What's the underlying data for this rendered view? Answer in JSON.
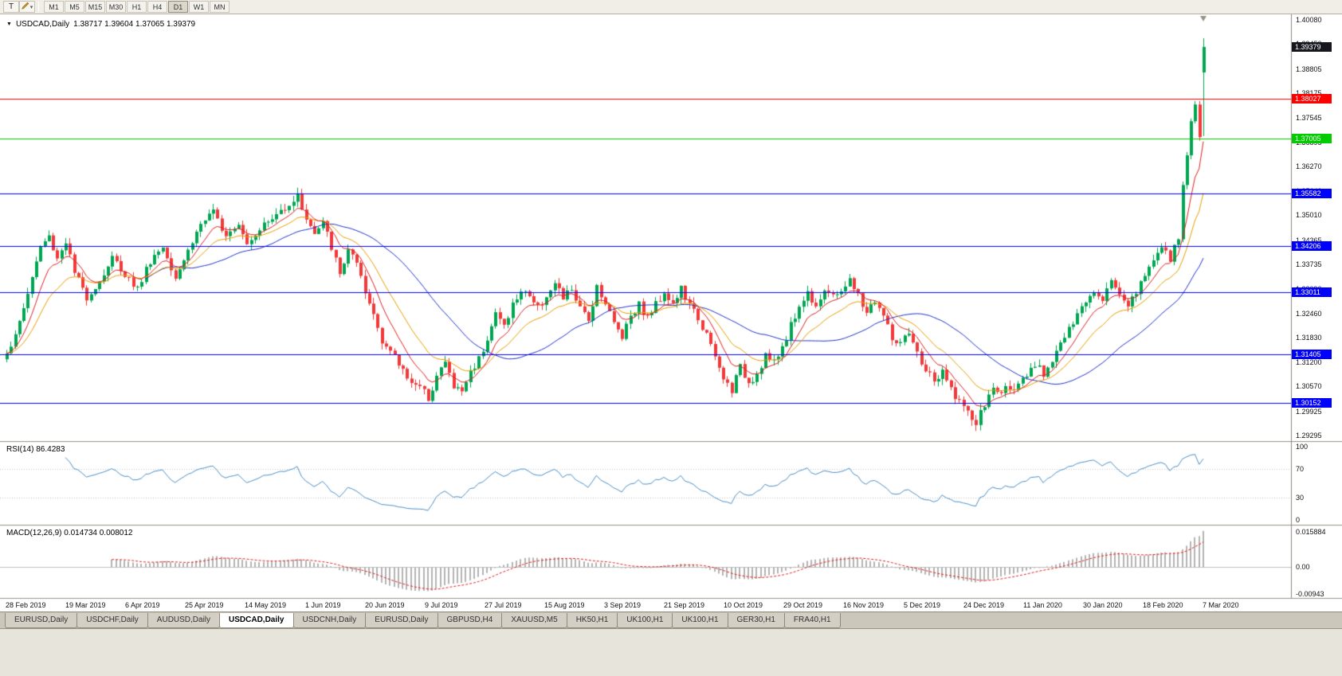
{
  "toolbar": {
    "tools": [
      {
        "name": "text-tool",
        "label": "T"
      },
      {
        "name": "style-tool",
        "icon": "pencil-icon"
      }
    ],
    "dropdown_glyph": "▾",
    "timeframes": [
      "M1",
      "M5",
      "M15",
      "M30",
      "H1",
      "H4",
      "D1",
      "W1",
      "MN"
    ],
    "active_timeframe": "D1"
  },
  "chart": {
    "title": {
      "collapse_glyph": "▼",
      "symbol": "USDCAD,Daily",
      "ohlc": "1.38717 1.39604 1.37065 1.39379"
    },
    "rsi_label": "RSI(14) 86.4283",
    "macd_label": "MACD(12,26,9) 0.014734 0.008012",
    "price_scale": [
      "1.40080",
      "1.39450",
      "1.38805",
      "1.38175",
      "1.37545",
      "1.36895",
      "1.36270",
      "1.35640",
      "1.35010",
      "1.34365",
      "1.33735",
      "1.33090",
      "1.32460",
      "1.31830",
      "1.31200",
      "1.30570",
      "1.29925",
      "1.29295"
    ],
    "rsi_scale": [
      "100",
      "70",
      "30",
      "0"
    ],
    "macd_scale": [
      "0.015884",
      "0.00",
      "-0.00943"
    ],
    "price_labels": [
      {
        "text": "1.39379",
        "price": 1.39379,
        "color": "#16161f",
        "type": "current-price"
      },
      {
        "text": "1.38027",
        "price": 1.38027,
        "color": "#ff0000",
        "type": "hline"
      },
      {
        "text": "1.37005",
        "price": 1.37005,
        "color": "#00cc00",
        "type": "hline"
      },
      {
        "text": "1.35582",
        "price": 1.35582,
        "color": "#0000ff",
        "type": "hline"
      },
      {
        "text": "1.34206",
        "price": 1.34206,
        "color": "#0000ff",
        "type": "hline"
      },
      {
        "text": "1.33011",
        "price": 1.33011,
        "color": "#0000ff",
        "type": "hline"
      },
      {
        "text": "1.31405",
        "price": 1.31405,
        "color": "#0000ff",
        "type": "hline"
      },
      {
        "text": "1.30152",
        "price": 1.30152,
        "color": "#0000ff",
        "type": "hline"
      }
    ],
    "time_scale": [
      "28 Feb 2019",
      "19 Mar 2019",
      "6 Apr 2019",
      "25 Apr 2019",
      "14 May 2019",
      "1 Jun 2019",
      "20 Jun 2019",
      "9 Jul 2019",
      "27 Jul 2019",
      "15 Aug 2019",
      "3 Sep 2019",
      "21 Sep 2019",
      "10 Oct 2019",
      "29 Oct 2019",
      "16 Nov 2019",
      "5 Dec 2019",
      "24 Dec 2019",
      "11 Jan 2020",
      "30 Jan 2020",
      "18 Feb 2020",
      "7 Mar 2020"
    ]
  },
  "chart_data": {
    "type": "candlestick",
    "symbol": "USDCAD",
    "timeframe": "Daily",
    "y_range": [
      1.29295,
      1.4008
    ],
    "bars_total": 285,
    "x_labels": [
      "28 Feb 2019",
      "19 Mar 2019",
      "6 Apr 2019",
      "25 Apr 2019",
      "14 May 2019",
      "1 Jun 2019",
      "20 Jun 2019",
      "9 Jul 2019",
      "27 Jul 2019",
      "15 Aug 2019",
      "3 Sep 2019",
      "21 Sep 2019",
      "10 Oct 2019",
      "29 Oct 2019",
      "16 Nov 2019",
      "5 Dec 2019",
      "24 Dec 2019",
      "11 Jan 2020",
      "30 Jan 2020",
      "18 Feb 2020",
      "7 Mar 2020"
    ],
    "last_bar_ohlc": {
      "open": 1.38717,
      "high": 1.39604,
      "low": 1.37065,
      "close": 1.39379
    },
    "close_path_anchors": [
      [
        0,
        1.315
      ],
      [
        2,
        1.3185
      ],
      [
        5,
        1.33
      ],
      [
        8,
        1.342
      ],
      [
        10,
        1.3445
      ],
      [
        12,
        1.339
      ],
      [
        14,
        1.3435
      ],
      [
        16,
        1.335
      ],
      [
        19,
        1.329
      ],
      [
        22,
        1.333
      ],
      [
        25,
        1.339
      ],
      [
        28,
        1.335
      ],
      [
        31,
        1.331
      ],
      [
        34,
        1.3385
      ],
      [
        37,
        1.342
      ],
      [
        40,
        1.3345
      ],
      [
        43,
        1.341
      ],
      [
        46,
        1.348
      ],
      [
        49,
        1.3505
      ],
      [
        52,
        1.3455
      ],
      [
        55,
        1.3485
      ],
      [
        57,
        1.343
      ],
      [
        60,
        1.347
      ],
      [
        63,
        1.349
      ],
      [
        66,
        1.3525
      ],
      [
        69,
        1.355
      ],
      [
        71,
        1.3495
      ],
      [
        73,
        1.345
      ],
      [
        75,
        1.348
      ],
      [
        77,
        1.342
      ],
      [
        79,
        1.3345
      ],
      [
        81,
        1.3415
      ],
      [
        83,
        1.337
      ],
      [
        85,
        1.3295
      ],
      [
        87,
        1.3245
      ],
      [
        89,
        1.318
      ],
      [
        92,
        1.313
      ],
      [
        95,
        1.3085
      ],
      [
        98,
        1.305
      ],
      [
        100,
        1.303
      ],
      [
        102,
        1.3085
      ],
      [
        104,
        1.312
      ],
      [
        106,
        1.3055
      ],
      [
        108,
        1.3045
      ],
      [
        110,
        1.3095
      ],
      [
        112,
        1.313
      ],
      [
        114,
        1.3185
      ],
      [
        116,
        1.3245
      ],
      [
        118,
        1.3215
      ],
      [
        120,
        1.327
      ],
      [
        123,
        1.331
      ],
      [
        126,
        1.326
      ],
      [
        128,
        1.3295
      ],
      [
        130,
        1.332
      ],
      [
        132,
        1.3285
      ],
      [
        134,
        1.331
      ],
      [
        136,
        1.3255
      ],
      [
        138,
        1.323
      ],
      [
        140,
        1.332
      ],
      [
        142,
        1.3275
      ],
      [
        144,
        1.322
      ],
      [
        146,
        1.319
      ],
      [
        148,
        1.3245
      ],
      [
        150,
        1.327
      ],
      [
        152,
        1.3235
      ],
      [
        154,
        1.327
      ],
      [
        156,
        1.3305
      ],
      [
        158,
        1.327
      ],
      [
        160,
        1.331
      ],
      [
        162,
        1.3265
      ],
      [
        164,
        1.3235
      ],
      [
        166,
        1.319
      ],
      [
        168,
        1.313
      ],
      [
        170,
        1.3075
      ],
      [
        172,
        1.305
      ],
      [
        174,
        1.3105
      ],
      [
        176,
        1.307
      ],
      [
        178,
        1.309
      ],
      [
        180,
        1.314
      ],
      [
        182,
        1.3115
      ],
      [
        184,
        1.316
      ],
      [
        186,
        1.3215
      ],
      [
        188,
        1.3265
      ],
      [
        190,
        1.33
      ],
      [
        192,
        1.327
      ],
      [
        194,
        1.331
      ],
      [
        196,
        1.3285
      ],
      [
        198,
        1.331
      ],
      [
        200,
        1.333
      ],
      [
        202,
        1.329
      ],
      [
        204,
        1.325
      ],
      [
        206,
        1.328
      ],
      [
        208,
        1.324
      ],
      [
        210,
        1.318
      ],
      [
        212,
        1.3165
      ],
      [
        214,
        1.319
      ],
      [
        216,
        1.314
      ],
      [
        218,
        1.31
      ],
      [
        220,
        1.307
      ],
      [
        222,
        1.309
      ],
      [
        224,
        1.305
      ],
      [
        226,
        1.302
      ],
      [
        228,
        1.2985
      ],
      [
        230,
        1.296
      ],
      [
        232,
        1.301
      ],
      [
        234,
        1.305
      ],
      [
        236,
        1.304
      ],
      [
        238,
        1.306
      ],
      [
        240,
        1.3055
      ],
      [
        242,
        1.308
      ],
      [
        244,
        1.311
      ],
      [
        246,
        1.309
      ],
      [
        248,
        1.313
      ],
      [
        250,
        1.317
      ],
      [
        252,
        1.32
      ],
      [
        254,
        1.324
      ],
      [
        256,
        1.328
      ],
      [
        258,
        1.331
      ],
      [
        260,
        1.329
      ],
      [
        262,
        1.333
      ],
      [
        264,
        1.33
      ],
      [
        266,
        1.327
      ],
      [
        268,
        1.3305
      ],
      [
        270,
        1.334
      ],
      [
        272,
        1.3395
      ],
      [
        274,
        1.3415
      ],
      [
        276,
        1.3385
      ],
      [
        278,
        1.344
      ],
      [
        279,
        1.358
      ],
      [
        280,
        1.3665
      ],
      [
        281,
        1.3745
      ],
      [
        282,
        1.378
      ],
      [
        283,
        1.3705
      ],
      [
        284,
        1.3938
      ]
    ],
    "horizontal_lines": [
      {
        "price": 1.38027,
        "color": "#ff0000"
      },
      {
        "price": 1.37005,
        "color": "#00cc00"
      },
      {
        "price": 1.35582,
        "color": "#0000ff"
      },
      {
        "price": 1.34206,
        "color": "#0000ff"
      },
      {
        "price": 1.33011,
        "color": "#0000ff"
      },
      {
        "price": 1.31405,
        "color": "#0000ff"
      },
      {
        "price": 1.30152,
        "color": "#0000ff"
      }
    ],
    "moving_averages": [
      {
        "type": "ema",
        "period": 8,
        "color": "#e02020"
      },
      {
        "type": "ema",
        "period": 17,
        "color": "#e8a000"
      },
      {
        "type": "sma",
        "period": 34,
        "color": "#2233cc"
      }
    ],
    "candle_colors": {
      "bull": "#00a651",
      "bear": "#f23a3a"
    },
    "indicators": [
      {
        "name": "RSI",
        "period": 14,
        "current": 86.4283,
        "levels": [
          70,
          30
        ],
        "range": [
          0,
          100
        ],
        "color": "#4a90c8"
      },
      {
        "name": "MACD",
        "params": [
          12,
          26,
          9
        ],
        "macd_current": 0.014734,
        "signal_current": 0.008012,
        "scale_max": 0.015884,
        "scale_min": -0.00943,
        "histogram_color": "#b4b4b4",
        "signal_color": "#e02020"
      }
    ]
  },
  "tabs": {
    "items": [
      "EURUSD,Daily",
      "USDCHF,Daily",
      "AUDUSD,Daily",
      "USDCAD,Daily",
      "USDCNH,Daily",
      "EURUSD,Daily",
      "GBPUSD,H4",
      "XAUUSD,M5",
      "HK50,H1",
      "UK100,H1",
      "UK100,H1",
      "GER30,H1",
      "FRA40,H1"
    ],
    "active_index": 3
  }
}
